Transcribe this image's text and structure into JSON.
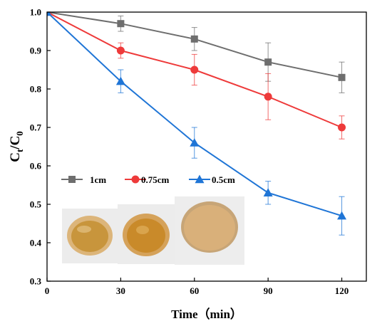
{
  "chart_data": {
    "type": "line",
    "x": [
      0,
      30,
      60,
      90,
      120
    ],
    "xlim": [
      0,
      130
    ],
    "ylim": [
      0.3,
      1.0
    ],
    "x_ticks": [
      "0",
      "30",
      "60",
      "90",
      "120"
    ],
    "y_ticks": [
      "0.3",
      "0.4",
      "0.5",
      "0.6",
      "0.7",
      "0.8",
      "0.9",
      "1.0"
    ],
    "xlabel": "Time（min）",
    "ylabel": "Ct/C0",
    "grid": false,
    "legend_position": "lower-left",
    "series": [
      {
        "name": "1cm",
        "color": "#6e6e6e",
        "marker": "square",
        "values": [
          1.0,
          0.97,
          0.93,
          0.87,
          0.83
        ],
        "errors": [
          0,
          0.02,
          0.03,
          0.05,
          0.04
        ]
      },
      {
        "name": "0.75cm",
        "color": "#ee3a3a",
        "marker": "circle",
        "values": [
          1.0,
          0.9,
          0.85,
          0.78,
          0.7
        ],
        "errors": [
          0,
          0.02,
          0.04,
          0.06,
          0.03
        ]
      },
      {
        "name": "0.5cm",
        "color": "#1f75d6",
        "marker": "triangle",
        "values": [
          1.0,
          0.82,
          0.66,
          0.53,
          0.47
        ],
        "errors": [
          0,
          0.03,
          0.04,
          0.03,
          0.05
        ]
      }
    ],
    "inset_image": {
      "description_name": "sample-photos",
      "colors": [
        "#c8953c",
        "#c98a2a",
        "#d9b07a"
      ]
    }
  }
}
